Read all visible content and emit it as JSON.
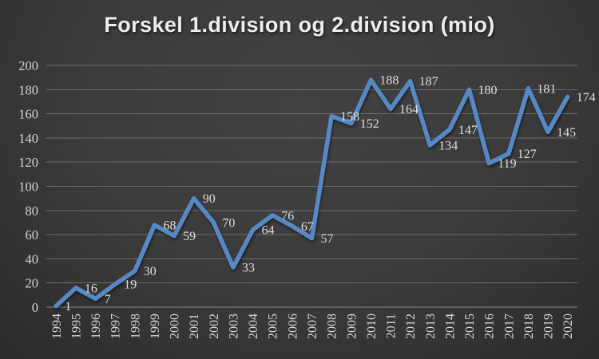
{
  "chart_data": {
    "type": "line",
    "title": "Forskel 1.division og 2.division (mio)",
    "categories": [
      "1994",
      "1995",
      "1996",
      "1997",
      "1998",
      "1999",
      "2000",
      "2001",
      "2002",
      "2003",
      "2004",
      "2005",
      "2006",
      "2007",
      "2008",
      "2009",
      "2010",
      "2011",
      "2012",
      "2013",
      "2014",
      "2015",
      "2016",
      "2017",
      "2018",
      "2019",
      "2020"
    ],
    "values": [
      1,
      16,
      7,
      19,
      30,
      68,
      59,
      90,
      70,
      33,
      64,
      76,
      67,
      57,
      158,
      152,
      188,
      164,
      187,
      134,
      147,
      180,
      119,
      127,
      181,
      145,
      174
    ],
    "xlabel": "",
    "ylabel": "",
    "ylim": [
      0,
      200
    ],
    "yticks": [
      0,
      20,
      40,
      60,
      80,
      100,
      120,
      140,
      160,
      180,
      200
    ],
    "grid": "horizontal",
    "legend": "none",
    "data_labels_shown": true,
    "x_tick_rotation_deg": 90,
    "colors": {
      "line": "#5689c4",
      "gridline": "#6e6e6e",
      "axis_line": "#868686",
      "tick_label": "#d4d4d4",
      "data_label": "#dedede",
      "title": "#ededed",
      "background_center": "#3b3b3b",
      "background_edge": "#1d1d1d"
    }
  }
}
